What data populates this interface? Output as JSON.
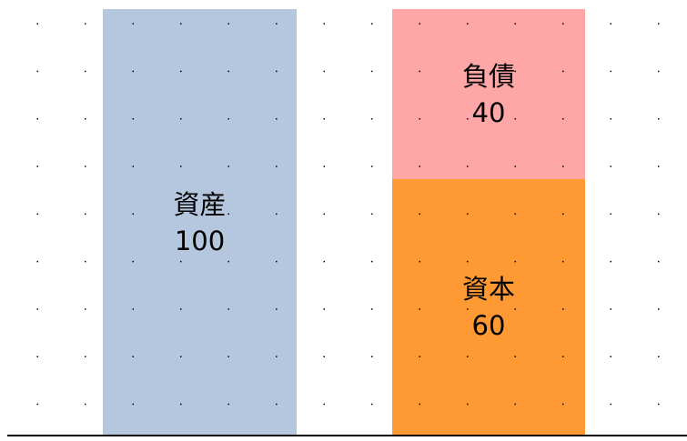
{
  "assets": {
    "label": "資産",
    "value": "100",
    "color": "#b4c7de"
  },
  "liabilities": {
    "label": "負債",
    "value": "40",
    "color": "#ffa6a6"
  },
  "equity": {
    "label": "資本",
    "value": "60",
    "color": "#ff9933"
  }
}
